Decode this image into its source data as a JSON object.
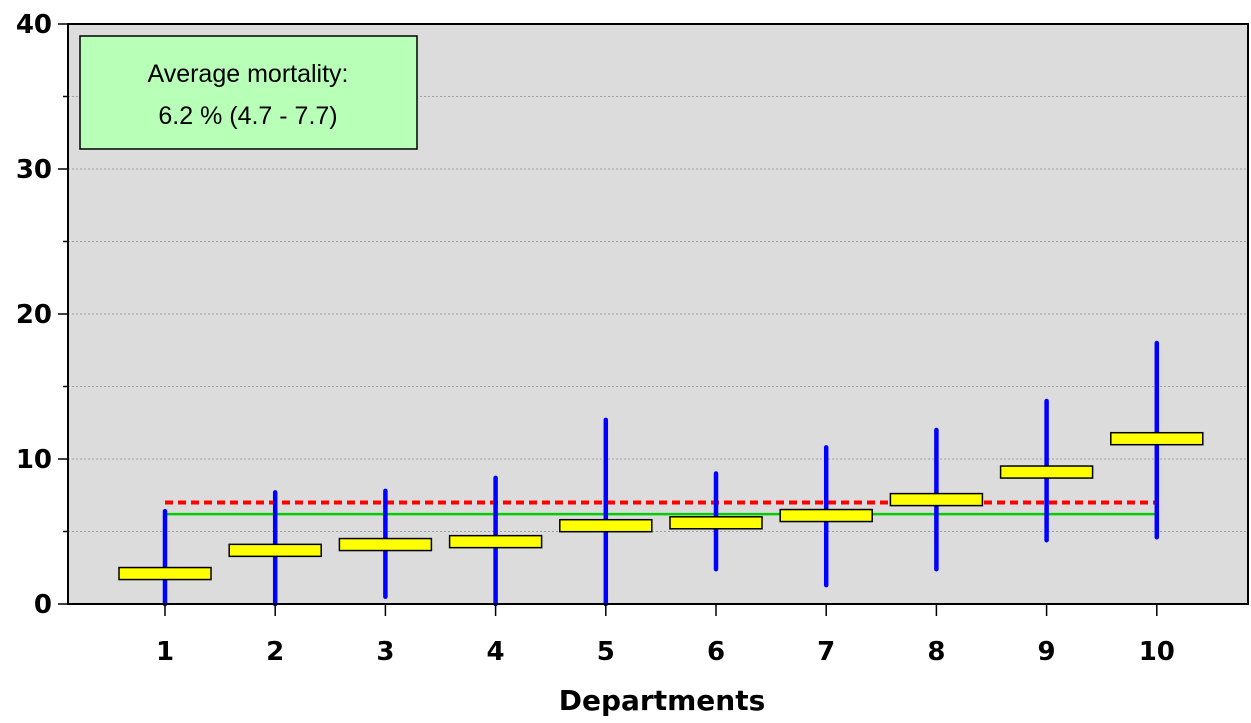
{
  "chart_data": {
    "type": "errorbar",
    "xlabel": "Departments",
    "ylabel": "",
    "categories": [
      "1",
      "2",
      "3",
      "4",
      "5",
      "6",
      "7",
      "8",
      "9",
      "10"
    ],
    "ylim": [
      0,
      40
    ],
    "yticks": [
      "0",
      "10",
      "20",
      "30",
      "40"
    ],
    "grid": true,
    "series": [
      {
        "values": [
          2.1,
          3.7,
          4.1,
          4.3,
          5.4,
          5.6,
          6.1,
          7.2,
          9.1,
          11.4
        ],
        "lower": [
          0,
          0,
          0.5,
          0,
          0,
          2.4,
          1.3,
          2.4,
          4.4,
          4.6
        ],
        "upper": [
          6.4,
          7.7,
          7.8,
          8.7,
          12.7,
          9.0,
          10.8,
          12.0,
          14.0,
          18.0
        ]
      }
    ],
    "reference_lines": {
      "average": 6.2,
      "upper_limit": 7.0
    },
    "info_box": {
      "line1": "Average mortality:",
      "line2": "6.2 % (4.7 - 7.7)"
    },
    "colors": {
      "plot_background": "#dcdcdc",
      "bar_fill": "#ffff00",
      "whisker": "#0000ff",
      "average_line": "#00cc00",
      "limit_line": "#ff0000",
      "info_box_fill": "#b8ffb8"
    }
  }
}
